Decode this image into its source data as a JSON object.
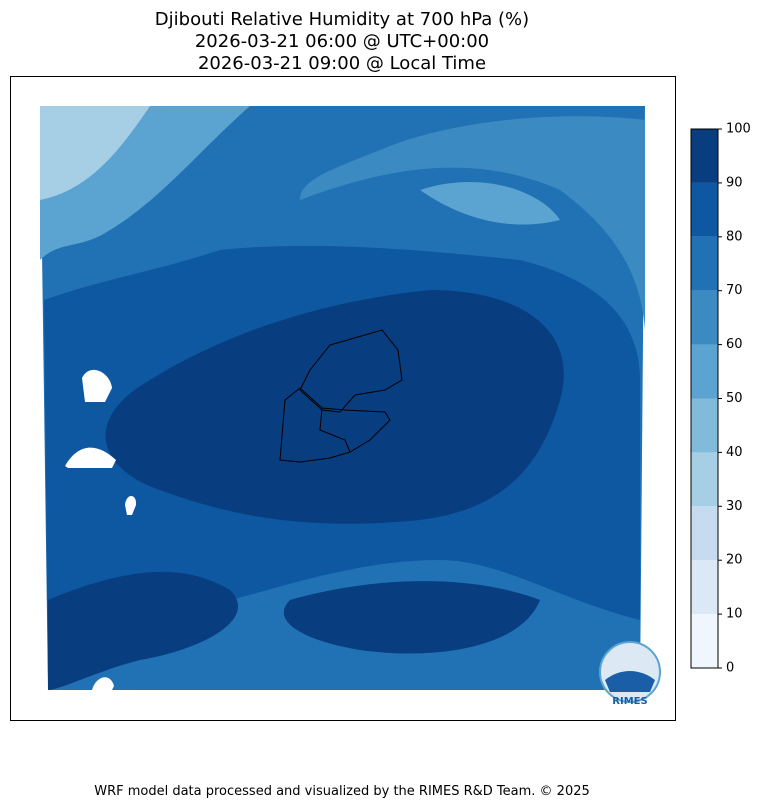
{
  "title": [
    "Djibouti Relative Humidity at 700 hPa (%)",
    "2026-03-21 06:00 @ UTC+00:00",
    "2026-03-21 09:00 @ Local Time"
  ],
  "colorbar": {
    "ticks": [
      0,
      10,
      20,
      30,
      40,
      50,
      60,
      70,
      80,
      90,
      100
    ],
    "colors": [
      "#f0f6fd",
      "#dbe9f6",
      "#c6dbef",
      "#a6cee4",
      "#81badb",
      "#5ba3d0",
      "#3b8bc2",
      "#2171b5",
      "#0d58a1",
      "#083d7f"
    ]
  },
  "logo": "RIMES",
  "footer": "WRF model data processed and visualized by the RIMES R&D Team. © 2025"
}
